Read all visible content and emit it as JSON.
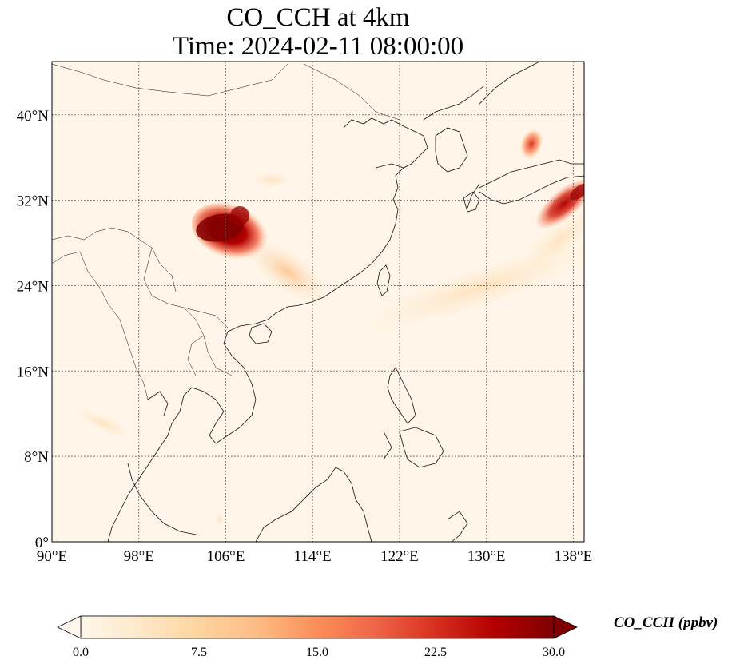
{
  "title_line1": "CO_CCH at 4km",
  "title_line2": "Time: 2024-02-11 08:00:00",
  "map": {
    "lon_range": [
      90,
      139
    ],
    "lat_range": [
      0,
      45
    ],
    "x_ticks": [
      "90°E",
      "98°E",
      "106°E",
      "114°E",
      "122°E",
      "130°E",
      "138°E"
    ],
    "y_ticks": [
      "0°",
      "8°N",
      "16°N",
      "24°N",
      "32°N",
      "40°N"
    ],
    "gridlines": true,
    "background_color": "#fff5e8",
    "plumes": [
      {
        "region": "Sichuan Basin",
        "level": "high"
      },
      {
        "region": "Japan (Honshu)",
        "level": "high"
      },
      {
        "region": "Korea/Sea of Japan",
        "level": "medium"
      }
    ]
  },
  "colorbar": {
    "label": "CO_CCH (ppbv)",
    "min": 0.0,
    "max": 30.0,
    "ticks": [
      "0.0",
      "7.5",
      "15.0",
      "22.5",
      "30.0"
    ],
    "extend": "both",
    "colormap": "OrRd",
    "colors": [
      "#fff7ec",
      "#fee8c8",
      "#fdd49e",
      "#fdbb84",
      "#fc8d59",
      "#ef6548",
      "#d7301f",
      "#b30000",
      "#7f0000"
    ]
  }
}
